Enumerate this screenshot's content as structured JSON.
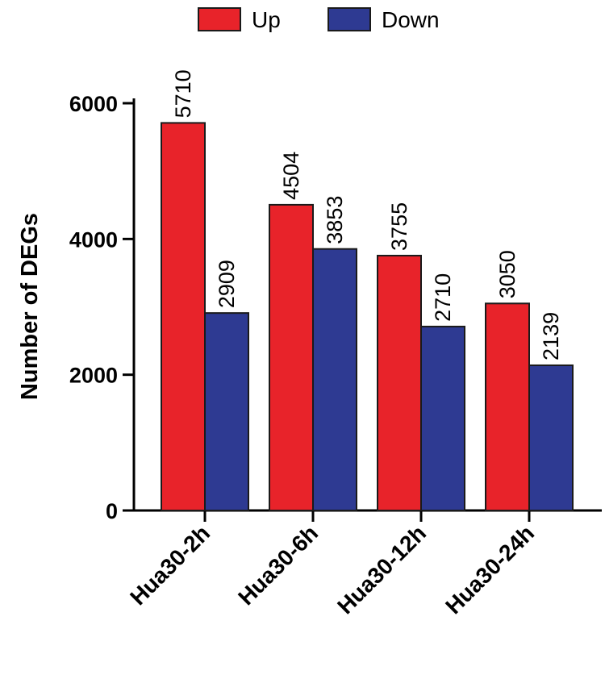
{
  "chart_data": {
    "type": "bar",
    "categories": [
      "Hua30-2h",
      "Hua30-6h",
      "Hua30-12h",
      "Hua30-24h"
    ],
    "series": [
      {
        "name": "Up",
        "values": [
          5710,
          4504,
          3755,
          3050
        ],
        "color": "#e8232a"
      },
      {
        "name": "Down",
        "values": [
          2909,
          3853,
          2710,
          2139
        ],
        "color": "#2e3a92"
      }
    ],
    "ylabel": "Number of DEGs",
    "xlabel": "",
    "ylim": [
      0,
      6000
    ],
    "yticks": [
      0,
      2000,
      4000,
      6000
    ],
    "legend_position": "top",
    "grid": false
  }
}
